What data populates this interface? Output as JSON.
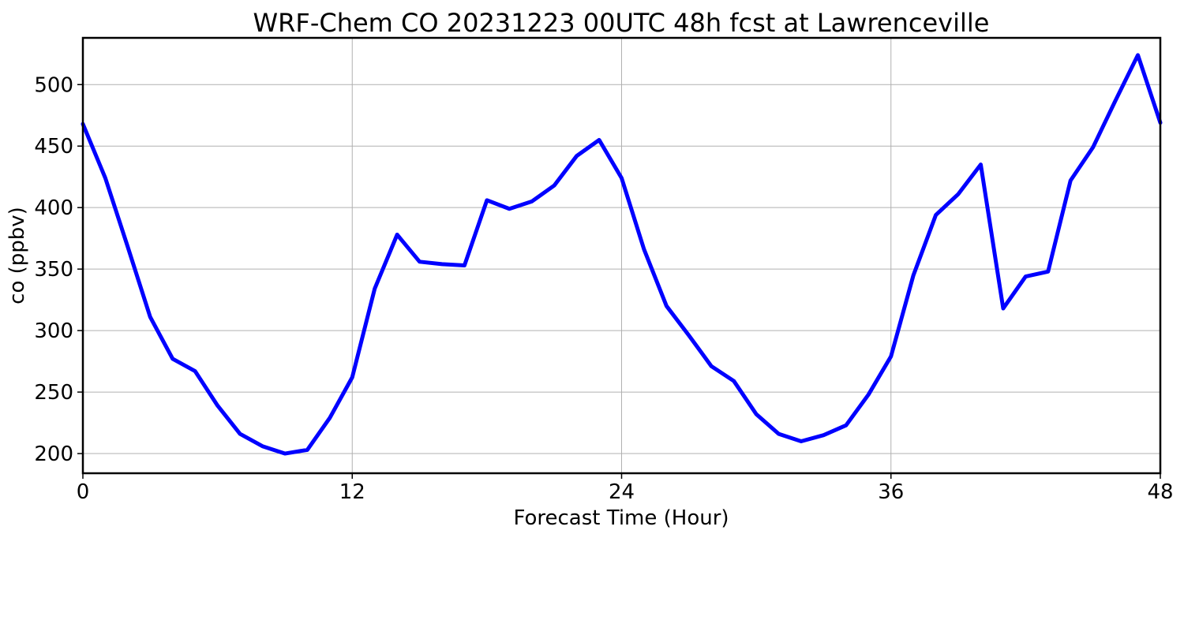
{
  "chart_data": {
    "type": "line",
    "title": "WRF-Chem CO  20231223 00UTC 48h fcst at Lawrenceville",
    "xlabel": "Forecast Time (Hour)",
    "ylabel": "co  (ppbv)",
    "xlim": [
      0,
      48
    ],
    "ylim": [
      184,
      538
    ],
    "xticks": [
      0,
      12,
      24,
      36,
      48
    ],
    "yticks": [
      200,
      250,
      300,
      350,
      400,
      450,
      500
    ],
    "grid": true,
    "series": [
      {
        "color": "#0000ff",
        "x": [
          0,
          1,
          2,
          3,
          4,
          5,
          6,
          7,
          8,
          9,
          10,
          11,
          12,
          13,
          14,
          15,
          16,
          17,
          18,
          19,
          20,
          21,
          22,
          23,
          24,
          25,
          26,
          27,
          28,
          29,
          30,
          31,
          32,
          33,
          34,
          35,
          36,
          37,
          38,
          39,
          40,
          41,
          42,
          43,
          44,
          45,
          46,
          47,
          48
        ],
        "values": [
          468,
          424,
          368,
          311,
          277,
          267,
          239,
          216,
          206,
          200,
          203,
          229,
          262,
          334,
          378,
          356,
          354,
          353,
          406,
          399,
          405,
          418,
          442,
          455,
          424,
          366,
          320,
          296,
          271,
          259,
          232,
          216,
          210,
          215,
          223,
          248,
          279,
          345,
          394,
          411,
          435,
          318,
          344,
          348,
          422,
          449,
          487,
          524,
          469
        ]
      }
    ]
  }
}
